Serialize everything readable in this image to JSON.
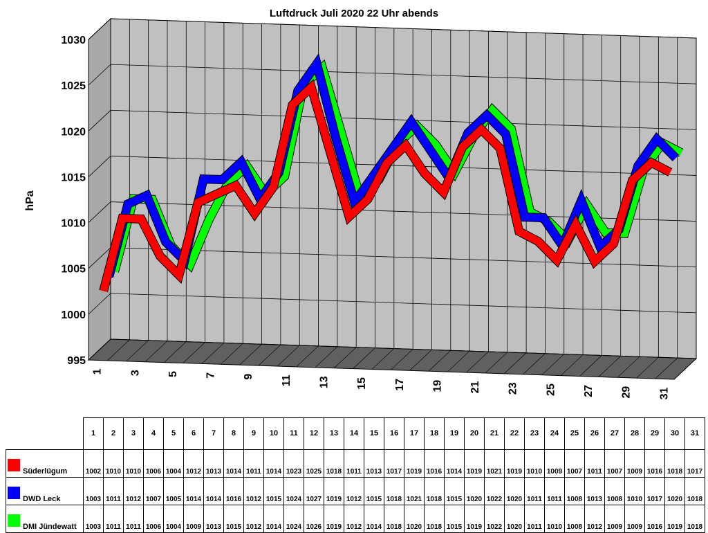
{
  "chart_data": {
    "type": "line",
    "title": "Luftdruck Juli 2020 22 Uhr abends",
    "ylabel": "hPa",
    "ylim": [
      995,
      1030
    ],
    "yticks": [
      995,
      1000,
      1005,
      1010,
      1015,
      1020,
      1025,
      1030
    ],
    "categories": [
      1,
      2,
      3,
      4,
      5,
      6,
      7,
      8,
      9,
      10,
      11,
      12,
      13,
      14,
      15,
      16,
      17,
      18,
      19,
      20,
      21,
      22,
      23,
      24,
      25,
      26,
      27,
      28,
      29,
      30,
      31
    ],
    "xtick_labels": [
      "1",
      "3",
      "5",
      "7",
      "9",
      "11",
      "13",
      "15",
      "17",
      "19",
      "21",
      "23",
      "25",
      "27",
      "29",
      "31"
    ],
    "grid": true,
    "style": "3d",
    "series": [
      {
        "name": "Süderlügum",
        "color": "#ff0000",
        "values": [
          1002,
          1010,
          1010,
          1006,
          1004,
          1012,
          1013,
          1014,
          1011,
          1014,
          1023,
          1025,
          1018,
          1011,
          1013,
          1017,
          1019,
          1016,
          1014,
          1019,
          1021,
          1019,
          1010,
          1009,
          1007,
          1011,
          1007,
          1009,
          1016,
          1018,
          1017
        ]
      },
      {
        "name": "DWD Leck",
        "color": "#0000ff",
        "values": [
          1003,
          1011,
          1012,
          1007,
          1005,
          1014,
          1014,
          1016,
          1012,
          1015,
          1024,
          1027,
          1019,
          1012,
          1015,
          1018,
          1021,
          1018,
          1015,
          1020,
          1022,
          1020,
          1011,
          1011,
          1008,
          1013,
          1008,
          1010,
          1017,
          1020,
          1018
        ]
      },
      {
        "name": "DMI Jündewatt",
        "color": "#00ff00",
        "values": [
          1003,
          1011,
          1011,
          1006,
          1004,
          1009,
          1013,
          1015,
          1012,
          1014,
          1024,
          1026,
          1019,
          1012,
          1014,
          1018,
          1020,
          1018,
          1015,
          1019,
          1022,
          1020,
          1011,
          1010,
          1008,
          1012,
          1009,
          1009,
          1016,
          1019,
          1018
        ]
      }
    ]
  }
}
